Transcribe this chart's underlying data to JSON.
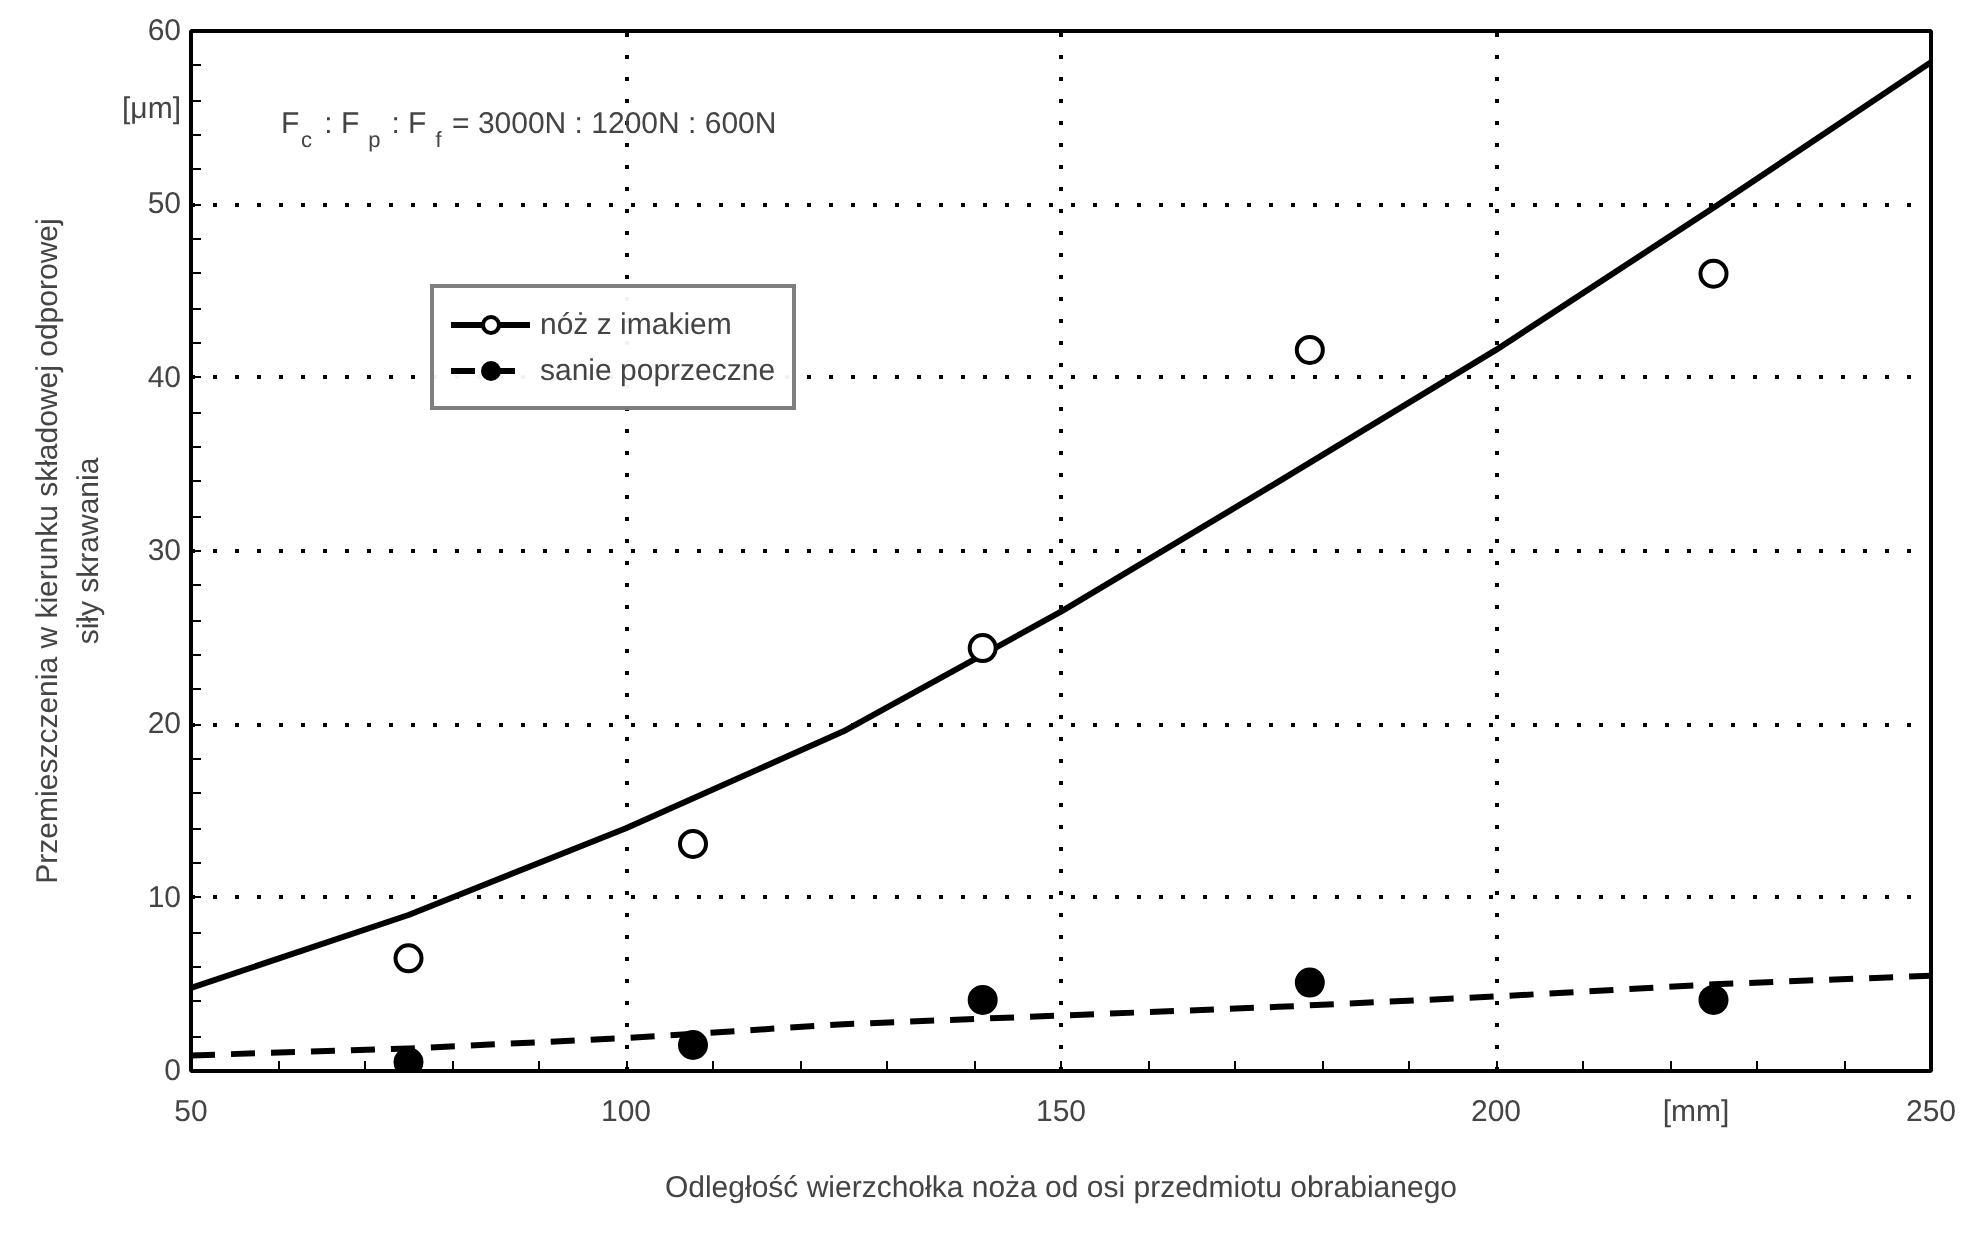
{
  "chart_data": {
    "type": "scatter",
    "xlabel": "Odległość wierzchołka noża od osi przedmiotu obrabianego",
    "ylabel": "Przemieszczenia w kierunku składowej odporowej\nsiły skrawania",
    "annotations": [
      "[μm]",
      "[mm]",
      "F$_{c}$ : F$_{p}$ : F$_{f}$ = 3000N : 1200N : 600N"
    ],
    "xlim": [
      50,
      250
    ],
    "xticks": [
      50,
      100,
      150,
      200,
      250
    ],
    "ylim": [
      0,
      60
    ],
    "yticks": [
      0,
      10,
      20,
      30,
      40,
      50,
      60
    ],
    "grid": true,
    "legend": "top left",
    "series": [
      {
        "type": "line",
        "line_style": "solid",
        "color": "#000000",
        "x": [
          50,
          75,
          100,
          125,
          150,
          175,
          200,
          225,
          250
        ],
        "values": [
          4.8,
          9.0,
          14.0,
          19.6,
          26.5,
          34.0,
          41.6,
          49.8,
          58.2
        ]
      },
      {
        "name": "nóż z imakiem",
        "marker": "circle",
        "color": "#ffffff",
        "x": [
          75,
          107.7,
          141,
          178.6,
          225
        ],
        "values": [
          6.5,
          13.1,
          24.4,
          41.6,
          46.0
        ]
      },
      {
        "type": "line",
        "line_style": "dashed",
        "color": "#000000",
        "x": [
          50,
          75,
          100,
          125,
          150,
          175,
          200,
          225,
          250
        ],
        "values": [
          0.9,
          1.3,
          1.9,
          2.7,
          3.2,
          3.7,
          4.3,
          5.0,
          5.5
        ]
      },
      {
        "name": "sanie poprzeczne",
        "marker": "circle",
        "color": "#000000",
        "x": [
          75,
          107.7,
          141,
          178.6,
          225
        ],
        "values": [
          0.5,
          1.5,
          4.1,
          5.1,
          4.1
        ]
      }
    ]
  }
}
